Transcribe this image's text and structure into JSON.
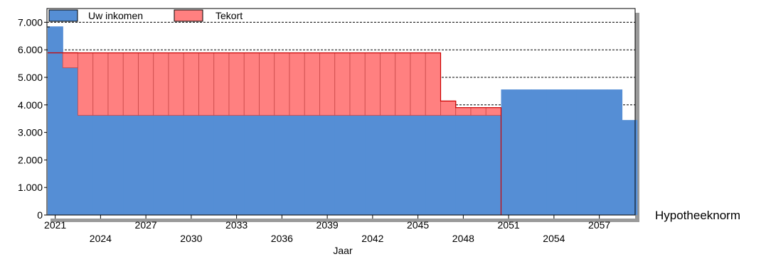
{
  "chart_data": {
    "type": "bar",
    "xlabel": "Jaar",
    "side_label": "Hypotheeknorm",
    "ylim": [
      0,
      7500
    ],
    "yticks": [
      0,
      1000,
      2000,
      3000,
      4000,
      5000,
      6000,
      7000
    ],
    "ytick_labels": [
      "0",
      "1.000",
      "2.000",
      "3.000",
      "4.000",
      "5.000",
      "6.000",
      "7.000"
    ],
    "grid": "dashed horizontal at 4.000, 5.000, 6.000, 7.000",
    "x_ticks_row1": [
      "2021",
      "2027",
      "2033",
      "2039",
      "2045",
      "2051",
      "2057"
    ],
    "x_ticks_row2": [
      "2024",
      "2030",
      "2036",
      "2042",
      "2048",
      "2054"
    ],
    "legend": [
      {
        "label": "Uw inkomen",
        "color": "#558ed5"
      },
      {
        "label": "Tekort",
        "color": "#ff8080"
      }
    ],
    "colors": {
      "income": "#558ed5",
      "shortfall": "#ff8080",
      "norm_line": "#cc0000"
    },
    "years": [
      2021,
      2022,
      2023,
      2024,
      2025,
      2026,
      2027,
      2028,
      2029,
      2030,
      2031,
      2032,
      2033,
      2034,
      2035,
      2036,
      2037,
      2038,
      2039,
      2040,
      2041,
      2042,
      2043,
      2044,
      2045,
      2046,
      2047,
      2048,
      2049,
      2050,
      2051,
      2052,
      2053,
      2054,
      2055,
      2056,
      2057,
      2058,
      2059
    ],
    "series": [
      {
        "name": "Uw inkomen",
        "values": [
          6850,
          5350,
          3620,
          3620,
          3620,
          3620,
          3620,
          3620,
          3620,
          3620,
          3620,
          3620,
          3620,
          3620,
          3620,
          3620,
          3620,
          3620,
          3620,
          3620,
          3620,
          3620,
          3620,
          3620,
          3620,
          3620,
          3620,
          3620,
          3620,
          3620,
          4560,
          4560,
          4560,
          4560,
          4560,
          4560,
          4560,
          4560,
          3450
        ]
      },
      {
        "name": "Tekort",
        "values": [
          0,
          550,
          2270,
          2270,
          2270,
          2270,
          2270,
          2270,
          2270,
          2270,
          2270,
          2270,
          2270,
          2270,
          2270,
          2270,
          2270,
          2270,
          2270,
          2270,
          2270,
          2270,
          2270,
          2270,
          2270,
          2270,
          520,
          280,
          280,
          280,
          0,
          0,
          0,
          0,
          0,
          0,
          0,
          0,
          0
        ]
      }
    ],
    "norm_line": [
      5890,
      5890,
      5890,
      5890,
      5890,
      5890,
      5890,
      5890,
      5890,
      5890,
      5890,
      5890,
      5890,
      5890,
      5890,
      5890,
      5890,
      5890,
      5890,
      5890,
      5890,
      5890,
      5890,
      5890,
      5890,
      5890,
      4140,
      3900,
      3900,
      3900
    ]
  }
}
